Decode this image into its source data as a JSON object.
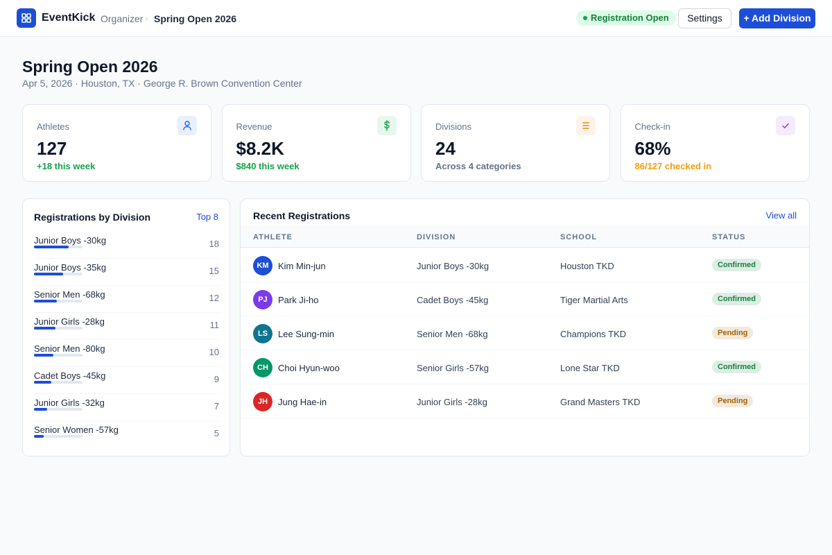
{
  "header": {
    "brand": "EventKick",
    "breadcrumb": [
      "Organizer",
      "Spring Open 2026"
    ],
    "status_badge": "Registration Open",
    "buttons": [
      "Settings",
      "+ Add Division"
    ]
  },
  "event": {
    "title": "Spring Open 2026",
    "subtitle": "Apr 5, 2026 · Houston, TX · George R. Brown Convention Center"
  },
  "stats": [
    {
      "label": "Athletes",
      "value": "127",
      "note": "+18 this week",
      "note_color": "#16a34a",
      "icon_color": "#2563eb"
    },
    {
      "label": "Revenue",
      "value": "$8.2K",
      "note": "$840 this week",
      "note_color": "#16a34a",
      "icon_color": "#16a34a"
    },
    {
      "label": "Divisions",
      "value": "24",
      "note": "Across 4 categories",
      "note_color": "#64748b",
      "icon_color": "#ea8a0c"
    },
    {
      "label": "Check-in",
      "value": "68%",
      "note": "86/127 checked in",
      "note_color": "#f59e0b",
      "icon_color": "#9333ea"
    }
  ],
  "divisions": {
    "title": "Registrations by Division",
    "link": "Top 8",
    "bar_color": "#1d4ed8",
    "rows": [
      {
        "name": "Junior Boys -30kg",
        "count": 18
      },
      {
        "name": "Junior Boys -35kg",
        "count": 15
      },
      {
        "name": "Senior Men -68kg",
        "count": 12
      },
      {
        "name": "Junior Girls -28kg",
        "count": 11
      },
      {
        "name": "Senior Men -80kg",
        "count": 10
      },
      {
        "name": "Cadet Boys -45kg",
        "count": 9
      },
      {
        "name": "Junior Girls -32kg",
        "count": 7
      },
      {
        "name": "Senior Women -57kg",
        "count": 5
      }
    ]
  },
  "registrations": {
    "title": "Recent Registrations",
    "link": "View all",
    "columns": [
      "ATHLETE",
      "DIVISION",
      "SCHOOL",
      "STATUS"
    ],
    "rows": [
      {
        "initials": "KM",
        "avatar_color": "#1d4ed8",
        "athlete": "Kim Min-jun",
        "division": "Junior Boys -30kg",
        "school": "Houston TKD",
        "status": "Confirmed",
        "status_color": "#15803d"
      },
      {
        "initials": "PJ",
        "avatar_color": "#7c3aed",
        "athlete": "Park Ji-ho",
        "division": "Cadet Boys -45kg",
        "school": "Tiger Martial Arts",
        "status": "Confirmed",
        "status_color": "#15803d"
      },
      {
        "initials": "LS",
        "avatar_color": "#0e7490",
        "athlete": "Lee Sung-min",
        "division": "Senior Men -68kg",
        "school": "Champions TKD",
        "status": "Pending",
        "status_color": "#a16207"
      },
      {
        "initials": "CH",
        "avatar_color": "#059669",
        "athlete": "Choi Hyun-woo",
        "division": "Senior Girls -57kg",
        "school": "Lone Star TKD",
        "status": "Confirmed",
        "status_color": "#15803d"
      },
      {
        "initials": "JH",
        "avatar_color": "#dc2626",
        "athlete": "Jung Hae-in",
        "division": "Junior Girls -28kg",
        "school": "Grand Masters TKD",
        "status": "Pending",
        "status_color": "#a16207"
      }
    ]
  }
}
